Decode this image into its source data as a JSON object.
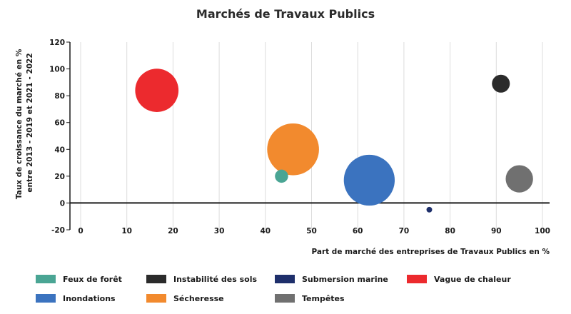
{
  "chart_data": {
    "type": "bubble",
    "title": "Marchés de Travaux Publics",
    "xlabel": "Part de marché des entreprises de Travaux Publics en %",
    "ylabel_lines": [
      "Taux de croissance du marché en %",
      "entre 2013 - 2019 et 2021 - 2022"
    ],
    "xlim": [
      0,
      100
    ],
    "ylim": [
      -20,
      120
    ],
    "xticks": [
      "0",
      "10",
      "20",
      "30",
      "40",
      "50",
      "60",
      "70",
      "80",
      "90",
      "100"
    ],
    "yticks": [
      "-20",
      "0",
      "20",
      "40",
      "60",
      "80",
      "100",
      "120"
    ],
    "grid": "vertical",
    "legend_position": "bottom",
    "series": [
      {
        "name": "Feux de forêt",
        "x": 43.5,
        "y": 20,
        "size": 1.4,
        "color": "#4aa594"
      },
      {
        "name": "Instabilité des sols",
        "x": 91,
        "y": 89,
        "size": 1.9,
        "color": "#2b2b2b"
      },
      {
        "name": "Submersion marine",
        "x": 75.5,
        "y": -5,
        "size": 0.6,
        "color": "#1e2f6b"
      },
      {
        "name": "Vague de chaleur",
        "x": 16.5,
        "y": 84,
        "size": 4.6,
        "color": "#ec2a2e"
      },
      {
        "name": "Inondations",
        "x": 62.5,
        "y": 17,
        "size": 5.4,
        "color": "#3b73bf"
      },
      {
        "name": "Sécheresse",
        "x": 46,
        "y": 40,
        "size": 5.5,
        "color": "#f28a2e"
      },
      {
        "name": "Tempêtes",
        "x": 95,
        "y": 18,
        "size": 2.9,
        "color": "#707070"
      }
    ]
  }
}
